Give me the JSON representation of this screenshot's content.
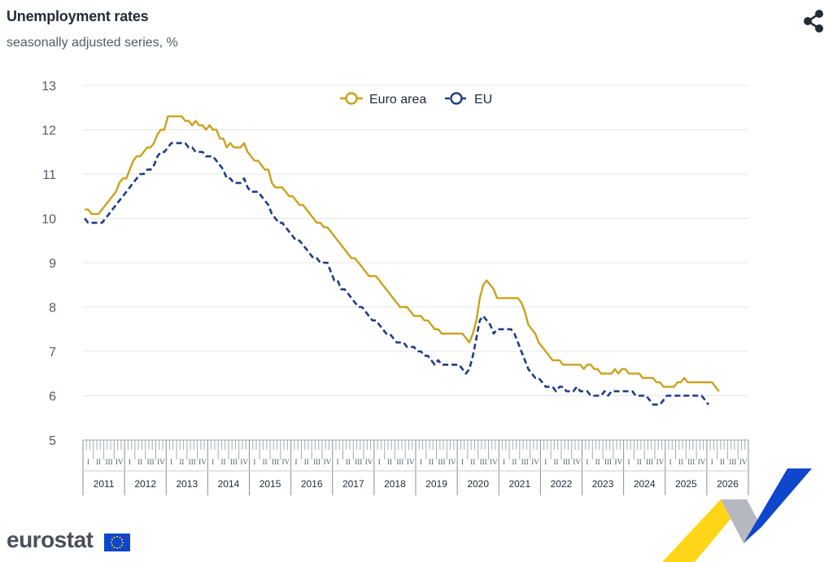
{
  "header": {
    "title": "Unemployment rates",
    "subtitle": "seasonally adjusted series, %"
  },
  "toolbar": {
    "share_icon": "share-icon"
  },
  "footer": {
    "logo_text": "eurostat",
    "flag_icon": "eu-flag-icon"
  },
  "colors": {
    "euro_area": "#c9a21c",
    "eu": "#1f3c88",
    "grid": "#e3e6ec",
    "axis_text": "#555a66",
    "brand_blue": "#0e47cb",
    "brand_yellow": "#ffd617",
    "brand_grey": "#b5b8c0"
  },
  "chart_data": {
    "type": "line",
    "title": "Unemployment rates",
    "subtitle": "seasonally adjusted series, %",
    "x_unit": "month",
    "x_start": "2011-01",
    "ylim": [
      5,
      13
    ],
    "yticks": [
      5,
      6,
      7,
      8,
      9,
      10,
      11,
      12,
      13
    ],
    "grid": true,
    "legend_placement": "top-center",
    "years": [
      "2011",
      "2012",
      "2013",
      "2014",
      "2015",
      "2016",
      "2017",
      "2018",
      "2019",
      "2020",
      "2021",
      "2022",
      "2023",
      "2024",
      "2025",
      "2026"
    ],
    "quarter_labels": [
      "I",
      "II",
      "III",
      "IV"
    ],
    "series": [
      {
        "name": "Euro area",
        "style": "solid",
        "values": [
          10.2,
          10.2,
          10.1,
          10.1,
          10.1,
          10.2,
          10.3,
          10.4,
          10.5,
          10.6,
          10.8,
          10.9,
          10.9,
          11.1,
          11.3,
          11.4,
          11.4,
          11.5,
          11.6,
          11.6,
          11.7,
          11.9,
          12.0,
          12.0,
          12.3,
          12.3,
          12.3,
          12.3,
          12.3,
          12.2,
          12.2,
          12.1,
          12.2,
          12.1,
          12.1,
          12.0,
          12.1,
          12.0,
          12.0,
          11.8,
          11.8,
          11.6,
          11.7,
          11.6,
          11.6,
          11.6,
          11.7,
          11.5,
          11.4,
          11.3,
          11.3,
          11.2,
          11.1,
          11.1,
          10.8,
          10.7,
          10.7,
          10.7,
          10.6,
          10.5,
          10.5,
          10.4,
          10.3,
          10.3,
          10.2,
          10.1,
          10.0,
          9.9,
          9.9,
          9.8,
          9.8,
          9.7,
          9.6,
          9.5,
          9.4,
          9.3,
          9.2,
          9.1,
          9.1,
          9.0,
          8.9,
          8.8,
          8.7,
          8.7,
          8.7,
          8.6,
          8.5,
          8.4,
          8.3,
          8.2,
          8.1,
          8.0,
          8.0,
          8.0,
          7.9,
          7.8,
          7.8,
          7.8,
          7.7,
          7.7,
          7.6,
          7.5,
          7.5,
          7.4,
          7.4,
          7.4,
          7.4,
          7.4,
          7.4,
          7.4,
          7.3,
          7.2,
          7.4,
          7.7,
          8.2,
          8.5,
          8.6,
          8.5,
          8.4,
          8.2,
          8.2,
          8.2,
          8.2,
          8.2,
          8.2,
          8.2,
          8.1,
          7.9,
          7.6,
          7.5,
          7.4,
          7.2,
          7.1,
          7.0,
          6.9,
          6.8,
          6.8,
          6.8,
          6.7,
          6.7,
          6.7,
          6.7,
          6.7,
          6.7,
          6.6,
          6.7,
          6.7,
          6.6,
          6.6,
          6.5,
          6.5,
          6.5,
          6.5,
          6.6,
          6.5,
          6.6,
          6.6,
          6.5,
          6.5,
          6.5,
          6.5,
          6.4,
          6.4,
          6.4,
          6.4,
          6.3,
          6.3,
          6.2,
          6.2,
          6.2,
          6.2,
          6.3,
          6.3,
          6.4,
          6.3,
          6.3,
          6.3,
          6.3,
          6.3,
          6.3,
          6.3,
          6.3,
          6.2,
          6.1
        ]
      },
      {
        "name": "EU",
        "style": "dashed",
        "values": [
          10.0,
          9.9,
          9.9,
          9.9,
          9.9,
          9.9,
          10.0,
          10.1,
          10.2,
          10.3,
          10.4,
          10.5,
          10.6,
          10.7,
          10.8,
          10.9,
          11.0,
          11.0,
          11.1,
          11.1,
          11.2,
          11.4,
          11.5,
          11.5,
          11.6,
          11.7,
          11.7,
          11.7,
          11.7,
          11.7,
          11.6,
          11.6,
          11.5,
          11.5,
          11.5,
          11.4,
          11.4,
          11.4,
          11.3,
          11.2,
          11.1,
          10.9,
          10.9,
          10.8,
          10.8,
          10.8,
          10.9,
          10.7,
          10.6,
          10.6,
          10.6,
          10.5,
          10.4,
          10.3,
          10.1,
          10.0,
          9.9,
          9.9,
          9.8,
          9.7,
          9.6,
          9.5,
          9.5,
          9.4,
          9.3,
          9.2,
          9.1,
          9.1,
          9.0,
          9.0,
          9.0,
          8.8,
          8.6,
          8.6,
          8.4,
          8.4,
          8.3,
          8.2,
          8.1,
          8.0,
          8.0,
          7.9,
          7.8,
          7.7,
          7.7,
          7.6,
          7.5,
          7.4,
          7.4,
          7.3,
          7.2,
          7.2,
          7.2,
          7.1,
          7.1,
          7.1,
          7.0,
          7.0,
          6.9,
          6.9,
          6.8,
          6.7,
          6.8,
          6.7,
          6.7,
          6.7,
          6.7,
          6.7,
          6.7,
          6.6,
          6.5,
          6.6,
          6.9,
          7.3,
          7.7,
          7.8,
          7.7,
          7.6,
          7.4,
          7.5,
          7.5,
          7.5,
          7.5,
          7.5,
          7.4,
          7.2,
          7.0,
          6.8,
          6.6,
          6.5,
          6.4,
          6.4,
          6.3,
          6.2,
          6.2,
          6.2,
          6.1,
          6.2,
          6.2,
          6.1,
          6.1,
          6.1,
          6.2,
          6.1,
          6.1,
          6.1,
          6.0,
          6.0,
          6.0,
          6.0,
          6.1,
          6.0,
          6.1,
          6.1,
          6.1,
          6.1,
          6.1,
          6.1,
          6.1,
          6.0,
          6.0,
          6.0,
          6.0,
          5.9,
          5.8,
          5.8,
          5.8,
          5.9,
          6.0,
          6.0,
          6.0,
          6.0,
          6.0,
          6.0,
          6.0,
          6.0,
          6.0,
          6.0,
          6.0,
          5.9,
          5.8
        ]
      }
    ]
  }
}
